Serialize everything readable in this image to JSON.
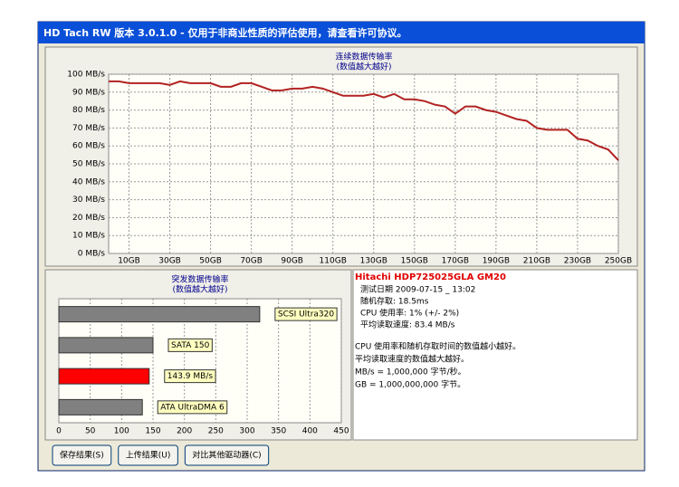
{
  "window": {
    "title": "HD Tach RW 版本 3.0.1.0 - 仅用于非商业性质的评估使用，请查看许可协议。"
  },
  "chart_data": [
    {
      "type": "line",
      "title": "连续数据传输率",
      "subtitle": "(数值越大越好)",
      "x": [
        0,
        5,
        10,
        15,
        20,
        25,
        30,
        35,
        40,
        45,
        50,
        55,
        60,
        65,
        70,
        75,
        80,
        85,
        90,
        95,
        100,
        105,
        110,
        115,
        120,
        125,
        130,
        135,
        140,
        145,
        150,
        155,
        160,
        165,
        170,
        175,
        180,
        185,
        190,
        195,
        200,
        205,
        210,
        215,
        220,
        225,
        230,
        235,
        240,
        245,
        250
      ],
      "values": [
        96,
        96,
        95,
        95,
        95,
        95,
        94,
        96,
        95,
        95,
        95,
        93,
        93,
        95,
        95,
        93,
        91,
        91,
        92,
        92,
        93,
        92,
        90,
        88,
        88,
        88,
        89,
        87,
        89,
        86,
        86,
        85,
        83,
        82,
        78,
        82,
        82,
        80,
        79,
        77,
        75,
        74,
        70,
        69,
        69,
        69,
        64,
        63,
        60,
        58,
        52
      ],
      "color": "#b22222",
      "xlim": [
        0,
        250
      ],
      "xticks": [
        {
          "value": 10,
          "label": "10GB"
        },
        {
          "value": 30,
          "label": "30GB"
        },
        {
          "value": 50,
          "label": "50GB"
        },
        {
          "value": 70,
          "label": "70GB"
        },
        {
          "value": 90,
          "label": "90GB"
        },
        {
          "value": 110,
          "label": "110GB"
        },
        {
          "value": 130,
          "label": "130GB"
        },
        {
          "value": 150,
          "label": "150GB"
        },
        {
          "value": 170,
          "label": "170GB"
        },
        {
          "value": 190,
          "label": "190GB"
        },
        {
          "value": 210,
          "label": "210GB"
        },
        {
          "value": 230,
          "label": "230GB"
        },
        {
          "value": 250,
          "label": "250GB"
        }
      ],
      "ylim": [
        0,
        100
      ],
      "yticks": [
        {
          "value": 0,
          "label": "0 MB/s"
        },
        {
          "value": 10,
          "label": "10 MB/s"
        },
        {
          "value": 20,
          "label": "20 MB/s"
        },
        {
          "value": 30,
          "label": "30 MB/s"
        },
        {
          "value": 40,
          "label": "40 MB/s"
        },
        {
          "value": 50,
          "label": "50 MB/s"
        },
        {
          "value": 60,
          "label": "60 MB/s"
        },
        {
          "value": 70,
          "label": "70 MB/s"
        },
        {
          "value": 80,
          "label": "80 MB/s"
        },
        {
          "value": 90,
          "label": "90 MB/s"
        },
        {
          "value": 100,
          "label": "100 MB/s"
        }
      ],
      "grid": true
    },
    {
      "type": "hbar",
      "title": "突发数据传输率",
      "subtitle": "(数值越大越好)",
      "categories": [
        "SCSI Ultra320",
        "SATA 150",
        null,
        "ATA UltraDMA 6"
      ],
      "values": [
        320,
        150,
        143.9,
        133
      ],
      "value_labels": [
        null,
        null,
        "143.9 MB/s",
        null
      ],
      "colors": [
        "#808080",
        "#808080",
        "#ff0000",
        "#808080"
      ],
      "xlim": [
        0,
        450
      ],
      "xticks": [
        0,
        50,
        100,
        150,
        200,
        250,
        300,
        350,
        400,
        450
      ],
      "grid": true
    }
  ],
  "info": {
    "drive": "Hitachi HDP725025GLA GM20",
    "lines": [
      "测试日期 2009-07-15 _ 13:02",
      "随机存取: 18.5ms",
      "CPU 使用率: 1% (+/- 2%)",
      "平均读取速度: 83.4 MB/s"
    ],
    "notes": [
      "CPU 使用率和随机存取时间的数值越小越好。",
      "平均读取速度的数值越大越好。",
      "MB/s = 1,000,000 字节/秒。",
      "GB = 1,000,000,000 字节。"
    ]
  },
  "buttons": [
    "保存结果(S)",
    "上传结果(U)",
    "对比其他驱动器(C)"
  ]
}
